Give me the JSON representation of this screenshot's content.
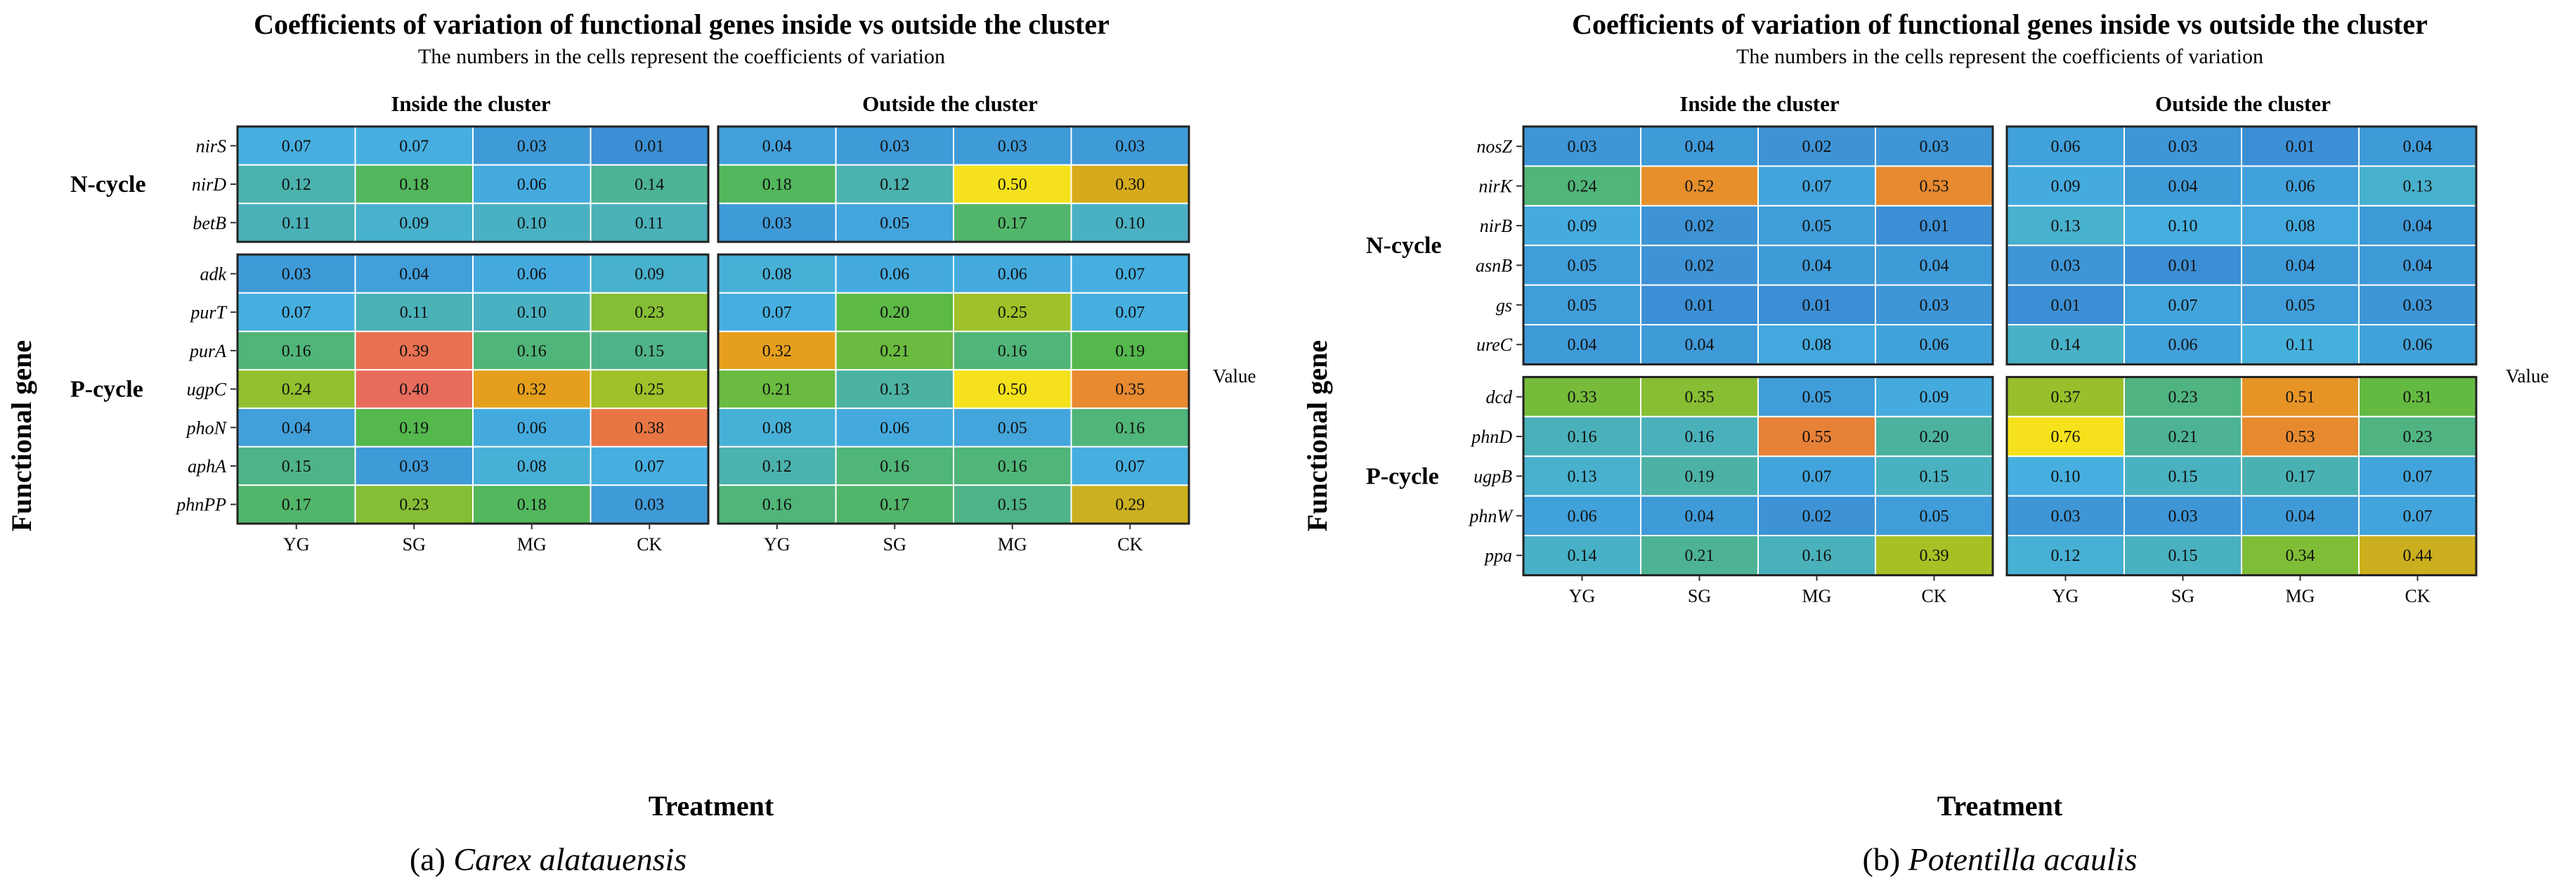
{
  "panels": [
    {
      "title": "Coefficients of variation of functional genes inside vs outside the cluster",
      "subtitle": "The numbers in the cells represent the coefficients of variation",
      "facets": [
        "Inside the cluster",
        "Outside the cluster"
      ],
      "ylabel": "Functional gene",
      "xlabel": "Treatment",
      "legend_title": "Value",
      "legend_ticks": [
        0.1,
        0.2,
        0.3,
        0.4,
        0.5
      ],
      "caption_prefix": "(a) ",
      "caption_species": "Carex alatauensis"
    },
    {
      "title": "Coefficients of variation of functional genes inside vs outside the cluster",
      "subtitle": "The numbers in the cells represent the coefficients of variation",
      "facets": [
        "Inside the cluster",
        "Outside the cluster"
      ],
      "ylabel": "Functional gene",
      "xlabel": "Treatment",
      "legend_title": "Value",
      "legend_ticks": [
        0.2,
        0.4,
        0.6
      ],
      "caption_prefix": "(b) ",
      "caption_species": "Potentilla acaulis"
    }
  ],
  "chart_data": [
    {
      "type": "heatmap",
      "title": "Coefficients of variation of functional genes inside vs outside the cluster",
      "subtitle": "The numbers in the cells represent the coefficients of variation",
      "xlabel": "Treatment",
      "ylabel": "Functional gene",
      "x_categories": [
        "YG",
        "SG",
        "MG",
        "CK"
      ],
      "facets": [
        "Inside the cluster",
        "Outside the cluster"
      ],
      "legend_title": "Value",
      "color_range": [
        0.01,
        0.5
      ],
      "color_stops": [
        "#3c8fd4",
        "#46b0e0",
        "#4cb2a0",
        "#54b848",
        "#a6c226",
        "#e6a219",
        "#e87742",
        "#e85a8a",
        "#f5e21c"
      ],
      "groups": [
        {
          "name": "N-cycle",
          "genes": [
            "nirS",
            "nirD",
            "betB"
          ],
          "values": {
            "Inside the cluster": [
              [
                0.07,
                0.07,
                0.03,
                0.01
              ],
              [
                0.12,
                0.18,
                0.06,
                0.14
              ],
              [
                0.11,
                0.09,
                0.1,
                0.11
              ]
            ],
            "Outside the cluster": [
              [
                0.04,
                0.03,
                0.03,
                0.03
              ],
              [
                0.18,
                0.12,
                0.5,
                0.3
              ],
              [
                0.03,
                0.05,
                0.17,
                0.1
              ]
            ]
          }
        },
        {
          "name": "P-cycle",
          "genes": [
            "adk",
            "purT",
            "purA",
            "ugpC",
            "phoN",
            "aphA",
            "phnPP"
          ],
          "values": {
            "Inside the cluster": [
              [
                0.03,
                0.04,
                0.06,
                0.09
              ],
              [
                0.07,
                0.11,
                0.1,
                0.23
              ],
              [
                0.16,
                0.39,
                0.16,
                0.15
              ],
              [
                0.24,
                0.4,
                0.32,
                0.25
              ],
              [
                0.04,
                0.19,
                0.06,
                0.38
              ],
              [
                0.15,
                0.03,
                0.08,
                0.07
              ],
              [
                0.17,
                0.23,
                0.18,
                0.03
              ]
            ],
            "Outside the cluster": [
              [
                0.08,
                0.06,
                0.06,
                0.07
              ],
              [
                0.07,
                0.2,
                0.25,
                0.07
              ],
              [
                0.32,
                0.21,
                0.16,
                0.19
              ],
              [
                0.21,
                0.13,
                0.5,
                0.35
              ],
              [
                0.08,
                0.06,
                0.05,
                0.16
              ],
              [
                0.12,
                0.16,
                0.16,
                0.07
              ],
              [
                0.16,
                0.17,
                0.15,
                0.29
              ]
            ]
          }
        }
      ]
    },
    {
      "type": "heatmap",
      "title": "Coefficients of variation of functional genes inside vs outside the cluster",
      "subtitle": "The numbers in the cells represent the coefficients of variation",
      "xlabel": "Treatment",
      "ylabel": "Functional gene",
      "x_categories": [
        "YG",
        "SG",
        "MG",
        "CK"
      ],
      "facets": [
        "Inside the cluster",
        "Outside the cluster"
      ],
      "legend_title": "Value",
      "color_range": [
        0.01,
        0.76
      ],
      "color_stops": [
        "#3c8fd4",
        "#46b0e0",
        "#4cb2a0",
        "#54b848",
        "#a6c226",
        "#e6a219",
        "#e87742",
        "#e85a8a",
        "#f5e21c"
      ],
      "groups": [
        {
          "name": "N-cycle",
          "genes": [
            "nosZ",
            "nirK",
            "nirB",
            "asnB",
            "gs",
            "ureC"
          ],
          "values": {
            "Inside the cluster": [
              [
                0.03,
                0.04,
                0.02,
                0.03
              ],
              [
                0.24,
                0.52,
                0.07,
                0.53
              ],
              [
                0.09,
                0.02,
                0.05,
                0.01
              ],
              [
                0.05,
                0.02,
                0.04,
                0.04
              ],
              [
                0.05,
                0.01,
                0.01,
                0.03
              ],
              [
                0.04,
                0.04,
                0.08,
                0.06
              ]
            ],
            "Outside the cluster": [
              [
                0.06,
                0.03,
                0.01,
                0.04
              ],
              [
                0.09,
                0.04,
                0.06,
                0.13
              ],
              [
                0.13,
                0.1,
                0.08,
                0.04
              ],
              [
                0.03,
                0.01,
                0.04,
                0.04
              ],
              [
                0.01,
                0.07,
                0.05,
                0.03
              ],
              [
                0.14,
                0.06,
                0.11,
                0.06
              ]
            ]
          }
        },
        {
          "name": "P-cycle",
          "genes": [
            "dcd",
            "phnD",
            "ugpB",
            "phnW",
            "ppa"
          ],
          "values": {
            "Inside the cluster": [
              [
                0.33,
                0.35,
                0.05,
                0.09
              ],
              [
                0.16,
                0.16,
                0.55,
                0.2
              ],
              [
                0.13,
                0.19,
                0.07,
                0.15
              ],
              [
                0.06,
                0.04,
                0.02,
                0.05
              ],
              [
                0.14,
                0.21,
                0.16,
                0.39
              ]
            ],
            "Outside the cluster": [
              [
                0.37,
                0.23,
                0.51,
                0.31
              ],
              [
                0.76,
                0.21,
                0.53,
                0.23
              ],
              [
                0.1,
                0.15,
                0.17,
                0.07
              ],
              [
                0.03,
                0.03,
                0.04,
                0.07
              ],
              [
                0.12,
                0.15,
                0.34,
                0.44
              ]
            ]
          }
        }
      ]
    }
  ]
}
